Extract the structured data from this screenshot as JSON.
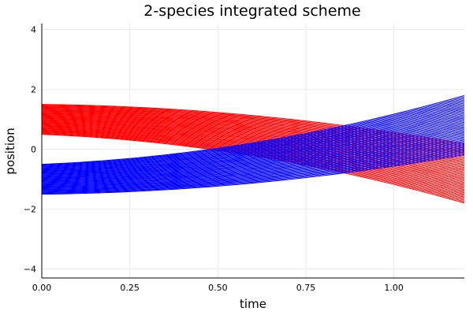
{
  "chart_data": {
    "type": "line",
    "title": "2-species integrated scheme",
    "xlabel": "time",
    "ylabel": "position",
    "xlim": [
      0,
      1.2
    ],
    "ylim": [
      -4.3,
      4.2
    ],
    "xticks": [
      0,
      0.25,
      0.5,
      0.75,
      1.0
    ],
    "xtick_labels": [
      "0.00",
      "0.25",
      "0.50",
      "0.75",
      "1.00"
    ],
    "yticks": [
      -4,
      -2,
      0,
      2,
      4
    ],
    "ytick_labels": [
      "−4",
      "−2",
      "0",
      "2",
      "4"
    ],
    "grid": true,
    "legend": "none",
    "series": [
      {
        "color": "#ff0000",
        "trajectory_count": 41,
        "initial_positions": [
          1.5,
          1.475,
          1.45,
          1.425,
          1.4,
          1.375,
          1.35,
          1.325,
          1.3,
          1.275,
          1.25,
          1.225,
          1.2,
          1.175,
          1.15,
          1.125,
          1.1,
          1.075,
          1.05,
          1.025,
          1.0,
          0.975,
          0.95,
          0.925,
          0.9,
          0.875,
          0.85,
          0.825,
          0.8,
          0.775,
          0.75,
          0.725,
          0.7,
          0.675,
          0.65,
          0.625,
          0.6,
          0.575,
          0.55,
          0.525,
          0.5
        ],
        "initial_velocities": [
          -0.14,
          -0.148,
          -0.157,
          -0.165,
          -0.173,
          -0.182,
          -0.19,
          -0.198,
          -0.207,
          -0.215,
          -0.223,
          -0.232,
          -0.24,
          -0.248,
          -0.257,
          -0.265,
          -0.273,
          -0.282,
          -0.29,
          -0.298,
          -0.307,
          -0.315,
          -0.323,
          -0.332,
          -0.34,
          -0.348,
          -0.357,
          -0.365,
          -0.373,
          -0.382,
          -0.39,
          -0.398,
          -0.407,
          -0.415,
          -0.423,
          -0.432,
          -0.44,
          -0.448,
          -0.457,
          -0.465,
          -0.473
        ],
        "accelerations": [
          -1.6,
          -1.62,
          -1.64,
          -1.66,
          -1.68,
          -1.7,
          -1.72,
          -1.74,
          -1.76,
          -1.78,
          -1.8,
          -1.82,
          -1.84,
          -1.86,
          -1.88,
          -1.9,
          -1.92,
          -1.94,
          -1.96,
          -1.98,
          -2.0,
          -2.02,
          -2.04,
          -2.06,
          -2.08,
          -2.1,
          -2.12,
          -2.14,
          -2.16,
          -2.18,
          -2.2,
          -2.22,
          -2.24,
          -2.26,
          -2.28,
          -2.3,
          -2.32,
          -2.34,
          -2.36,
          -2.38,
          -2.4
        ]
      },
      {
        "color": "#0000ff",
        "trajectory_count": 41,
        "initial_positions": [
          -0.5,
          -0.525,
          -0.55,
          -0.575,
          -0.6,
          -0.625,
          -0.65,
          -0.675,
          -0.7,
          -0.725,
          -0.75,
          -0.775,
          -0.8,
          -0.825,
          -0.85,
          -0.875,
          -0.9,
          -0.925,
          -0.95,
          -0.975,
          -1.0,
          -1.025,
          -1.05,
          -1.075,
          -1.1,
          -1.125,
          -1.15,
          -1.175,
          -1.2,
          -1.225,
          -1.25,
          -1.275,
          -1.3,
          -1.325,
          -1.35,
          -1.375,
          -1.4,
          -1.425,
          -1.45,
          -1.475,
          -1.5
        ],
        "initial_velocities": [
          0.473,
          0.465,
          0.457,
          0.448,
          0.44,
          0.432,
          0.423,
          0.415,
          0.407,
          0.398,
          0.39,
          0.382,
          0.373,
          0.365,
          0.357,
          0.348,
          0.34,
          0.332,
          0.323,
          0.315,
          0.307,
          0.298,
          0.29,
          0.282,
          0.273,
          0.265,
          0.257,
          0.248,
          0.24,
          0.232,
          0.223,
          0.215,
          0.207,
          0.198,
          0.19,
          0.182,
          0.173,
          0.165,
          0.157,
          0.148,
          0.14
        ],
        "accelerations": [
          2.4,
          2.38,
          2.36,
          2.34,
          2.32,
          2.3,
          2.28,
          2.26,
          2.24,
          2.22,
          2.2,
          2.18,
          2.16,
          2.14,
          2.12,
          2.1,
          2.08,
          2.06,
          2.04,
          2.02,
          2.0,
          1.98,
          1.96,
          1.94,
          1.92,
          1.9,
          1.88,
          1.86,
          1.84,
          1.82,
          1.8,
          1.78,
          1.76,
          1.74,
          1.72,
          1.7,
          1.68,
          1.66,
          1.64,
          1.62,
          1.6
        ]
      }
    ]
  }
}
